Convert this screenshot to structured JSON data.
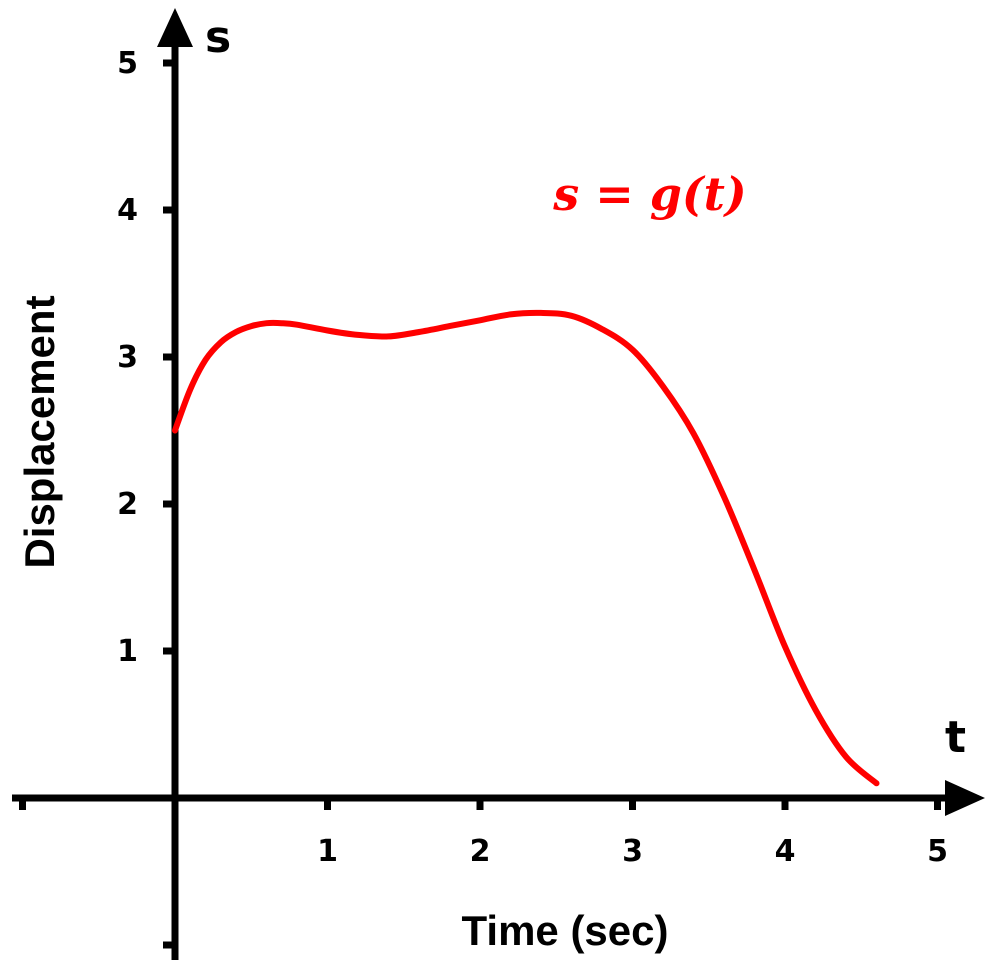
{
  "chart_data": {
    "type": "line",
    "x_var": "t",
    "y_var": "s",
    "xlabel": "Time (sec)",
    "ylabel": "Displacement",
    "x_ticks": [
      "1",
      "2",
      "3",
      "4",
      "5"
    ],
    "y_ticks": [
      "1",
      "2",
      "3",
      "4",
      "5"
    ],
    "xlim": [
      -1,
      5.2
    ],
    "ylim": [
      -1,
      5.3
    ],
    "grid": false,
    "series": [
      {
        "name": "s = g(t)",
        "color": "#ff0000",
        "x": [
          0,
          0.1,
          0.2,
          0.3,
          0.4,
          0.5,
          0.6,
          0.7,
          0.8,
          1.0,
          1.2,
          1.4,
          1.6,
          1.8,
          2.0,
          2.2,
          2.4,
          2.6,
          2.8,
          3.0,
          3.2,
          3.4,
          3.6,
          3.8,
          4.0,
          4.2,
          4.4,
          4.6
        ],
        "y": [
          2.5,
          2.78,
          2.98,
          3.1,
          3.17,
          3.21,
          3.23,
          3.23,
          3.22,
          3.18,
          3.15,
          3.14,
          3.17,
          3.21,
          3.25,
          3.29,
          3.3,
          3.28,
          3.19,
          3.05,
          2.8,
          2.48,
          2.05,
          1.55,
          1.03,
          0.6,
          0.28,
          0.1
        ]
      }
    ]
  }
}
